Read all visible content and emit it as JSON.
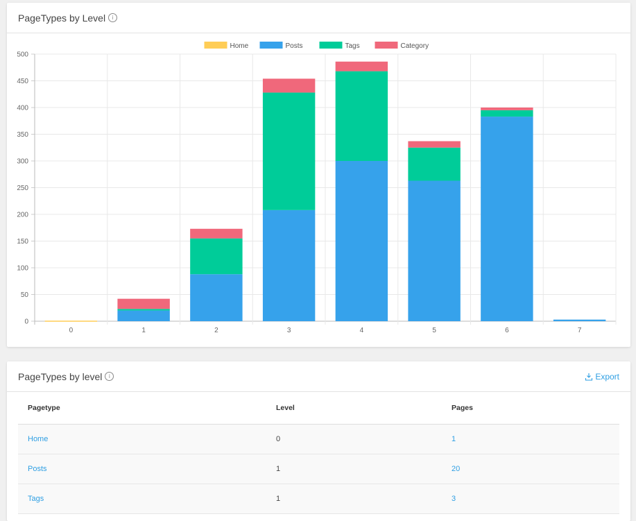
{
  "chart_card": {
    "title": "PageTypes by Level",
    "info_icon": "i"
  },
  "chart_data": {
    "type": "bar",
    "stacked": true,
    "categories": [
      "0",
      "1",
      "2",
      "3",
      "4",
      "5",
      "6",
      "7"
    ],
    "series": [
      {
        "name": "Home",
        "color": "#ffcd56",
        "values": [
          1,
          0,
          0,
          0,
          0,
          0,
          0,
          0
        ]
      },
      {
        "name": "Posts",
        "color": "#36a2eb",
        "values": [
          0,
          20,
          88,
          208,
          300,
          263,
          383,
          3
        ]
      },
      {
        "name": "Tags",
        "color": "#00cc99",
        "values": [
          0,
          3,
          67,
          220,
          168,
          62,
          12,
          0
        ]
      },
      {
        "name": "Category",
        "color": "#f0687b",
        "values": [
          0,
          19,
          18,
          26,
          18,
          12,
          5,
          0
        ]
      }
    ],
    "ylim": [
      0,
      500
    ],
    "yticks": [
      "0",
      "50",
      "100",
      "150",
      "200",
      "250",
      "300",
      "350",
      "400",
      "450",
      "500"
    ],
    "legend": "top",
    "grid": true
  },
  "table_card": {
    "title": "PageTypes by level",
    "info_icon": "i",
    "export_label": "Export",
    "columns": [
      "Pagetype",
      "Level",
      "Pages"
    ],
    "rows": [
      {
        "pagetype": "Home",
        "level": "0",
        "pages": "1"
      },
      {
        "pagetype": "Posts",
        "level": "1",
        "pages": "20"
      },
      {
        "pagetype": "Tags",
        "level": "1",
        "pages": "3"
      }
    ]
  }
}
